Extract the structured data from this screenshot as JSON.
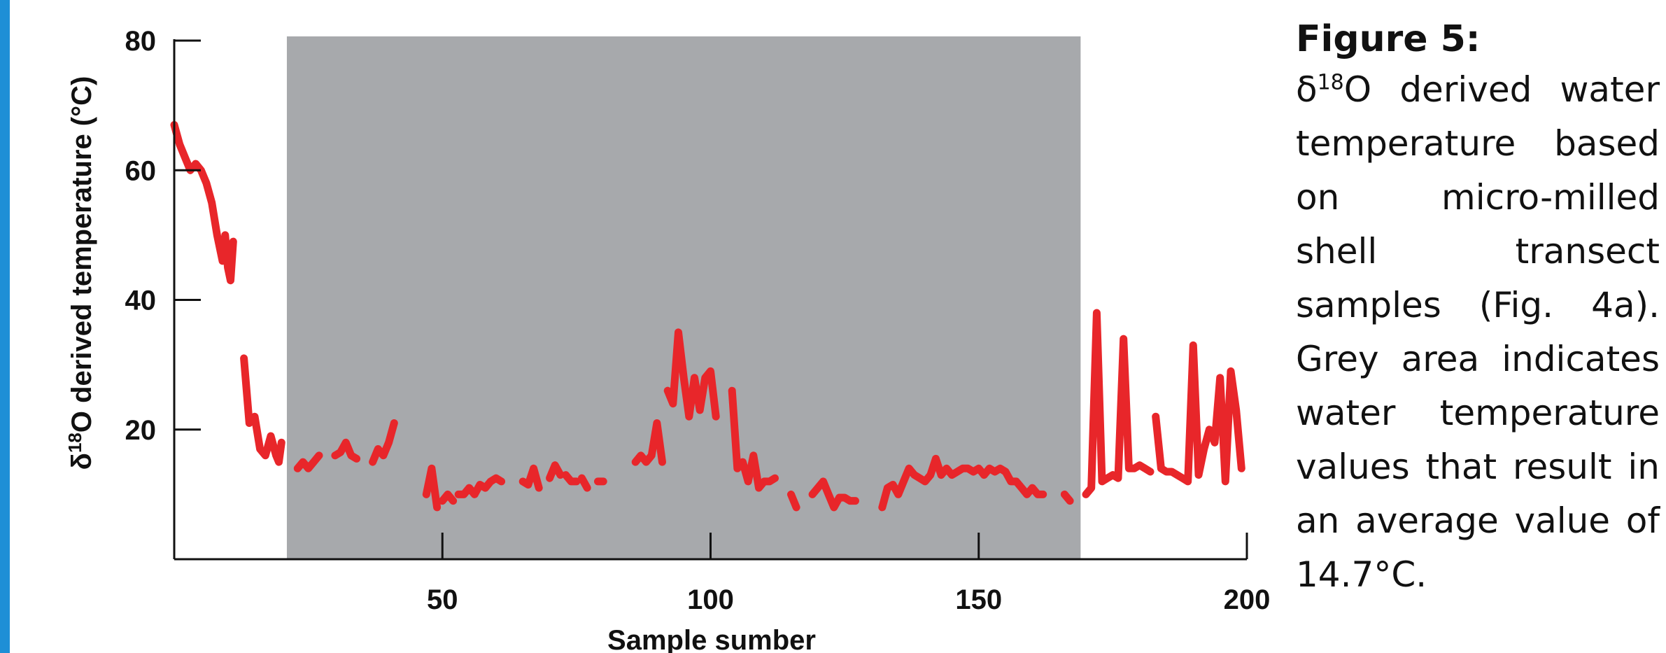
{
  "colors": {
    "accent_bar": "#1e8fd6",
    "line": "#e8262a",
    "shade": "#a7a9ac",
    "axis": "#111111"
  },
  "caption": {
    "title": "Figure 5:",
    "delta": "δ",
    "sup": "18",
    "body": "O derived water temperature based on micro-milled shell transect samples (Fig. 4a). Grey area indicates water temperature values that result in an average value of 14.7°C."
  },
  "chart_data": {
    "type": "line",
    "xlabel": "Sample sumber",
    "ylabel": "δ18O derived temperature (°C)",
    "ylabel_parts": {
      "delta": "δ",
      "sup": "18",
      "rest": "O derived temperature (°C)"
    },
    "xlim": [
      0,
      200
    ],
    "ylim": [
      0,
      80
    ],
    "xticks": [
      50,
      100,
      150,
      200
    ],
    "yticks": [
      20,
      40,
      60,
      80
    ],
    "shaded_region": {
      "x": [
        21,
        169
      ],
      "label": "Grey area"
    },
    "grid": false,
    "series": [
      {
        "segments": [
          [
            [
              0,
              67
            ],
            [
              1,
              64
            ],
            [
              2,
              62
            ],
            [
              3,
              60
            ],
            [
              4,
              61
            ],
            [
              5,
              60
            ],
            [
              6,
              58
            ],
            [
              7,
              55
            ],
            [
              8,
              50
            ],
            [
              9,
              46
            ],
            [
              9.5,
              50
            ],
            [
              10,
              45
            ],
            [
              10.5,
              43
            ],
            [
              11,
              49
            ]
          ],
          [
            [
              13,
              31
            ],
            [
              14,
              21
            ],
            [
              15,
              22
            ],
            [
              16,
              17
            ],
            [
              17,
              16
            ],
            [
              18,
              19
            ],
            [
              19,
              16
            ],
            [
              19.5,
              15
            ],
            [
              20,
              18
            ]
          ],
          [
            [
              23,
              14
            ],
            [
              24,
              15
            ],
            [
              25,
              14
            ],
            [
              26,
              15
            ],
            [
              27,
              16
            ]
          ],
          [
            [
              30,
              16
            ],
            [
              31,
              16.5
            ],
            [
              32,
              18
            ],
            [
              33,
              16
            ],
            [
              34,
              15.5
            ]
          ],
          [
            [
              37,
              15
            ],
            [
              38,
              17
            ],
            [
              39,
              16
            ],
            [
              40,
              18
            ],
            [
              41,
              21
            ]
          ],
          [
            [
              47,
              10
            ],
            [
              48,
              14
            ],
            [
              49,
              8
            ]
          ],
          [
            [
              50,
              9
            ],
            [
              51,
              10
            ],
            [
              52,
              9
            ]
          ],
          [
            [
              53,
              10
            ],
            [
              54,
              10
            ],
            [
              55,
              11
            ],
            [
              56,
              10
            ],
            [
              57,
              11.5
            ],
            [
              58,
              11
            ],
            [
              59,
              12
            ],
            [
              60,
              12.5
            ],
            [
              61,
              12
            ]
          ],
          [
            [
              65,
              12
            ],
            [
              66,
              11.5
            ],
            [
              67,
              14
            ],
            [
              68,
              11
            ]
          ],
          [
            [
              70,
              12.5
            ],
            [
              71,
              14.5
            ],
            [
              72,
              13
            ]
          ],
          [
            [
              73,
              13
            ],
            [
              74,
              12
            ],
            [
              75,
              12
            ]
          ],
          [
            [
              76,
              12.5
            ],
            [
              77,
              11
            ]
          ],
          [
            [
              79,
              12
            ],
            [
              80,
              12
            ]
          ],
          [
            [
              86,
              15
            ],
            [
              87,
              16
            ],
            [
              88,
              15
            ],
            [
              89,
              16
            ],
            [
              90,
              21
            ],
            [
              91,
              15
            ]
          ],
          [
            [
              92,
              26
            ],
            [
              93,
              24
            ],
            [
              94,
              35
            ],
            [
              95,
              28
            ],
            [
              96,
              22
            ],
            [
              97,
              28
            ],
            [
              98,
              23
            ],
            [
              99,
              28
            ],
            [
              100,
              29
            ],
            [
              101,
              22
            ]
          ],
          [
            [
              104,
              26
            ],
            [
              105,
              14
            ],
            [
              106,
              15
            ],
            [
              107,
              12
            ],
            [
              108,
              16
            ],
            [
              109,
              11
            ],
            [
              110,
              12
            ],
            [
              111,
              12
            ],
            [
              112,
              12.5
            ]
          ],
          [
            [
              115,
              10
            ],
            [
              116,
              8
            ]
          ],
          [
            [
              119,
              10
            ],
            [
              120,
              11
            ],
            [
              121,
              12
            ],
            [
              122,
              10
            ],
            [
              123,
              8
            ],
            [
              124,
              9.5
            ],
            [
              125,
              9.5
            ],
            [
              126,
              9
            ],
            [
              127,
              9
            ]
          ],
          [
            [
              132,
              8
            ],
            [
              133,
              11
            ],
            [
              134,
              11.5
            ],
            [
              135,
              10
            ],
            [
              136,
              12
            ],
            [
              137,
              14
            ],
            [
              138,
              13
            ],
            [
              139,
              12.5
            ],
            [
              140,
              12
            ],
            [
              141,
              13
            ],
            [
              142,
              15.5
            ],
            [
              143,
              13
            ],
            [
              144,
              14
            ],
            [
              145,
              13
            ],
            [
              146,
              13.5
            ],
            [
              147,
              14
            ],
            [
              148,
              14
            ],
            [
              149,
              13.5
            ],
            [
              150,
              14
            ],
            [
              151,
              13
            ],
            [
              152,
              14
            ],
            [
              153,
              13.5
            ],
            [
              154,
              14
            ],
            [
              155,
              13.5
            ],
            [
              156,
              12
            ],
            [
              157,
              12
            ],
            [
              158,
              11
            ],
            [
              159,
              10
            ],
            [
              160,
              11
            ],
            [
              161,
              10
            ],
            [
              162,
              10
            ]
          ],
          [
            [
              166,
              10
            ],
            [
              167,
              9
            ]
          ],
          [
            [
              170,
              10
            ],
            [
              171,
              11
            ],
            [
              172,
              38
            ],
            [
              173,
              12
            ],
            [
              174,
              12.5
            ],
            [
              175,
              13
            ],
            [
              176,
              12.5
            ],
            [
              177,
              34
            ],
            [
              178,
              14
            ],
            [
              179,
              14
            ],
            [
              180,
              14.5
            ],
            [
              181,
              14
            ],
            [
              182,
              13.5
            ]
          ],
          [
            [
              183,
              22
            ],
            [
              184,
              14
            ],
            [
              185,
              13.5
            ],
            [
              186,
              13.5
            ],
            [
              187,
              13
            ],
            [
              188,
              12.5
            ],
            [
              189,
              12
            ],
            [
              190,
              33
            ],
            [
              191,
              13
            ],
            [
              192,
              17
            ],
            [
              193,
              20
            ],
            [
              194,
              18
            ],
            [
              195,
              28
            ],
            [
              196,
              12
            ],
            [
              197,
              29
            ],
            [
              198,
              23
            ],
            [
              199,
              14
            ]
          ]
        ]
      }
    ]
  }
}
